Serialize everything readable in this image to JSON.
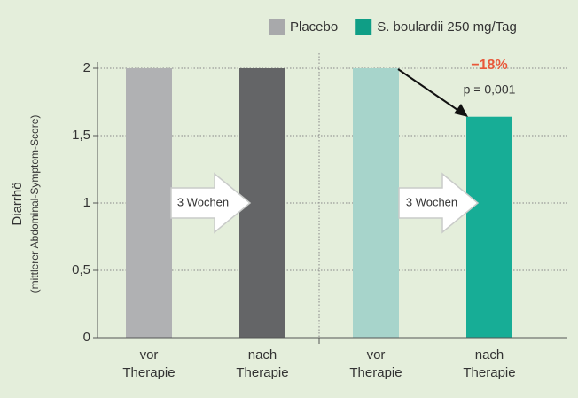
{
  "chart_data": {
    "type": "bar",
    "legend": [
      {
        "name": "Placebo",
        "color": "#a8a9ab"
      },
      {
        "name": "S. boulardii 250 mg/Tag",
        "color": "#0f9e86"
      }
    ],
    "ylabel": [
      "Diarrhö",
      "(mittlerer Abdominal-Symptom-Score)"
    ],
    "categories": [
      [
        "vor",
        "Therapie"
      ],
      [
        "nach",
        "Therapie"
      ],
      [
        "vor",
        "Therapie"
      ],
      [
        "nach",
        "Therapie"
      ]
    ],
    "values": [
      2,
      2,
      2,
      1.64
    ],
    "colors": [
      "#b0b1b3",
      "#646567",
      "#a7d4cb",
      "#17ad96"
    ],
    "ylim": [
      0,
      2
    ],
    "yticks": [
      {
        "value": 0,
        "label": "0"
      },
      {
        "value": 0.5,
        "label": "0,5"
      },
      {
        "value": 1,
        "label": "1"
      },
      {
        "value": 1.5,
        "label": "1,5"
      },
      {
        "value": 2,
        "label": "2"
      }
    ],
    "grid": true,
    "annotations": {
      "arrow_1": "3 Wochen",
      "arrow_2": "3 Wochen",
      "change": "−18%",
      "p_value": "p = 0,001"
    }
  }
}
